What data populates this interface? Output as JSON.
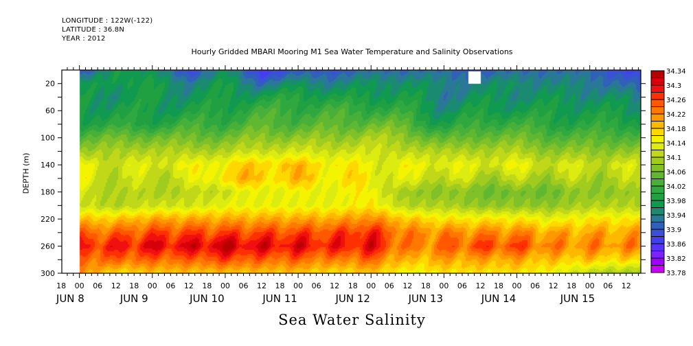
{
  "header": {
    "longitude": "LONGITUDE : 122W(-122)",
    "latitude": "LATITUDE : 36.8N",
    "year": "YEAR : 2012"
  },
  "chart_data": {
    "type": "heatmap",
    "title": "Hourly Gridded MBARI Mooring M1 Sea Water Temperature and Salinity Observations",
    "xlabel": "Sea Water Salinity",
    "ylabel": "DEPTH (m)",
    "x_range_hours": [
      -5.8,
      184.8
    ],
    "x_origin": "JUN 8 00:00",
    "data_start_hour": 0,
    "ylim": [
      300,
      0
    ],
    "y_ticks": [
      20,
      60,
      100,
      140,
      180,
      220,
      260,
      300
    ],
    "y_tick_labels": [
      "20",
      "60",
      "100",
      "140",
      "180",
      "220",
      "260",
      "300"
    ],
    "x_hour_ticks": [
      -6,
      0,
      6,
      12,
      18,
      24,
      30,
      36,
      42,
      48,
      54,
      60,
      66,
      72,
      78,
      84,
      90,
      96,
      102,
      108,
      114,
      120,
      126,
      132,
      138,
      144,
      150,
      156,
      162,
      168,
      174,
      180
    ],
    "x_hour_labels": [
      "18",
      "00",
      "06",
      "12",
      "18",
      "00",
      "06",
      "12",
      "18",
      "00",
      "06",
      "12",
      "18",
      "00",
      "06",
      "12",
      "18",
      "00",
      "06",
      "12",
      "18",
      "00",
      "06",
      "12",
      "18",
      "00",
      "06",
      "12",
      "18",
      "00",
      "06",
      "12"
    ],
    "date_labels": [
      {
        "hour": -3,
        "text": "JUN  8"
      },
      {
        "hour": 18,
        "text": "JUN  9"
      },
      {
        "hour": 42,
        "text": "JUN 10"
      },
      {
        "hour": 66,
        "text": "JUN 11"
      },
      {
        "hour": 90,
        "text": "JUN 12"
      },
      {
        "hour": 114,
        "text": "JUN 13"
      },
      {
        "hour": 138,
        "text": "JUN 14"
      },
      {
        "hour": 164,
        "text": "JUN 15"
      }
    ],
    "colorbar": {
      "levels": [
        33.78,
        33.8,
        33.82,
        33.84,
        33.86,
        33.88,
        33.9,
        33.92,
        33.94,
        33.96,
        33.98,
        34.0,
        34.02,
        34.04,
        34.06,
        34.08,
        34.1,
        34.12,
        34.14,
        34.16,
        34.18,
        34.2,
        34.22,
        34.24,
        34.26,
        34.28,
        34.3,
        34.32,
        34.34
      ],
      "labels": [
        "34.34",
        "34.3",
        "34.26",
        "34.22",
        "34.18",
        "34.14",
        "34.1",
        "34.06",
        "34.02",
        "33.98",
        "33.94",
        "33.9",
        "33.86",
        "33.82",
        "33.78"
      ],
      "colors": [
        "#cc00ff",
        "#a000ff",
        "#7a22ff",
        "#5a32ff",
        "#4040f0",
        "#3a50d8",
        "#3060b8",
        "#2a7898",
        "#1a8a70",
        "#109a50",
        "#20a040",
        "#30a840",
        "#48b038",
        "#60b830",
        "#80c028",
        "#a0cc20",
        "#c0d818",
        "#dceb10",
        "#f4f400",
        "#ffd800",
        "#ffb800",
        "#ff9800",
        "#ff7800",
        "#ff5800",
        "#ff3000",
        "#f01010",
        "#d80008",
        "#b80000"
      ]
    },
    "depth_profile_depths": [
      0,
      20,
      40,
      60,
      80,
      100,
      120,
      140,
      160,
      180,
      200,
      220,
      240,
      260,
      280,
      300
    ],
    "profiles": [
      {
        "hour": 0,
        "values": [
          33.88,
          33.96,
          33.98,
          33.98,
          34.0,
          34.04,
          34.08,
          34.14,
          34.14,
          34.12,
          34.12,
          34.18,
          34.24,
          34.28,
          34.24,
          34.22
        ]
      },
      {
        "hour": 12,
        "values": [
          33.98,
          33.98,
          33.96,
          33.98,
          34.0,
          34.06,
          34.1,
          34.12,
          34.11,
          34.1,
          34.1,
          34.18,
          34.24,
          34.28,
          34.24,
          34.16
        ]
      },
      {
        "hour": 24,
        "values": [
          33.96,
          33.98,
          33.98,
          33.98,
          34.0,
          34.06,
          34.1,
          34.13,
          34.11,
          34.1,
          34.12,
          34.2,
          34.26,
          34.3,
          34.24,
          34.18
        ]
      },
      {
        "hour": 36,
        "values": [
          33.88,
          33.94,
          33.96,
          33.98,
          34.02,
          34.06,
          34.1,
          34.14,
          34.12,
          34.1,
          34.12,
          34.2,
          34.26,
          34.3,
          34.24,
          34.18
        ]
      },
      {
        "hour": 48,
        "values": [
          33.96,
          33.98,
          33.98,
          34.0,
          34.02,
          34.06,
          34.1,
          34.16,
          34.18,
          34.12,
          34.14,
          34.2,
          34.26,
          34.32,
          34.26,
          34.18
        ]
      },
      {
        "hour": 60,
        "values": [
          33.86,
          33.92,
          33.98,
          34.02,
          34.04,
          34.08,
          34.12,
          34.18,
          34.18,
          34.14,
          34.14,
          34.2,
          34.26,
          34.3,
          34.24,
          34.18
        ]
      },
      {
        "hour": 72,
        "values": [
          33.9,
          33.96,
          34.0,
          34.02,
          34.04,
          34.08,
          34.12,
          34.18,
          34.18,
          34.14,
          34.14,
          34.2,
          34.26,
          34.3,
          34.24,
          34.18
        ]
      },
      {
        "hour": 84,
        "values": [
          33.9,
          33.94,
          33.98,
          34.02,
          34.04,
          34.08,
          34.12,
          34.16,
          34.16,
          34.14,
          34.14,
          34.2,
          34.26,
          34.28,
          34.22,
          34.16
        ]
      },
      {
        "hour": 96,
        "values": [
          33.92,
          33.96,
          33.98,
          34.02,
          34.06,
          34.1,
          34.12,
          34.14,
          34.15,
          34.15,
          34.16,
          34.22,
          34.28,
          34.3,
          34.24,
          34.18
        ]
      },
      {
        "hour": 108,
        "values": [
          33.92,
          33.96,
          33.98,
          34.0,
          34.04,
          34.08,
          34.11,
          34.14,
          34.12,
          34.08,
          34.1,
          34.18,
          34.22,
          34.22,
          34.18,
          34.14
        ]
      },
      {
        "hour": 120,
        "values": [
          33.92,
          33.94,
          33.94,
          33.96,
          33.98,
          34.04,
          34.1,
          34.14,
          34.12,
          34.08,
          34.1,
          34.16,
          34.22,
          34.24,
          34.2,
          34.16
        ]
      },
      {
        "hour": 132,
        "values": [
          33.9,
          33.94,
          33.96,
          33.98,
          34.02,
          34.06,
          34.1,
          34.13,
          34.1,
          34.06,
          34.08,
          34.16,
          34.22,
          34.26,
          34.2,
          34.16
        ]
      },
      {
        "hour": 144,
        "values": [
          33.92,
          33.96,
          33.96,
          33.98,
          34.02,
          34.06,
          34.1,
          34.14,
          34.1,
          34.06,
          34.08,
          34.16,
          34.22,
          34.26,
          34.2,
          34.16
        ]
      },
      {
        "hour": 156,
        "values": [
          33.92,
          33.94,
          33.96,
          33.98,
          34.0,
          34.04,
          34.08,
          34.12,
          34.1,
          34.06,
          34.08,
          34.14,
          34.2,
          34.22,
          34.18,
          34.14
        ]
      },
      {
        "hour": 168,
        "values": [
          33.92,
          33.94,
          33.96,
          33.98,
          34.0,
          34.04,
          34.08,
          34.12,
          34.1,
          34.08,
          34.1,
          34.16,
          34.2,
          34.22,
          34.18,
          34.1
        ]
      },
      {
        "hour": 185,
        "values": [
          33.86,
          33.9,
          33.94,
          33.96,
          34.0,
          34.04,
          34.08,
          34.12,
          34.1,
          34.08,
          34.1,
          34.16,
          34.2,
          34.22,
          34.16,
          34.08
        ]
      }
    ],
    "missing_region": {
      "hour_range": [
        128,
        132
      ],
      "depth_range": [
        2,
        20
      ]
    }
  }
}
